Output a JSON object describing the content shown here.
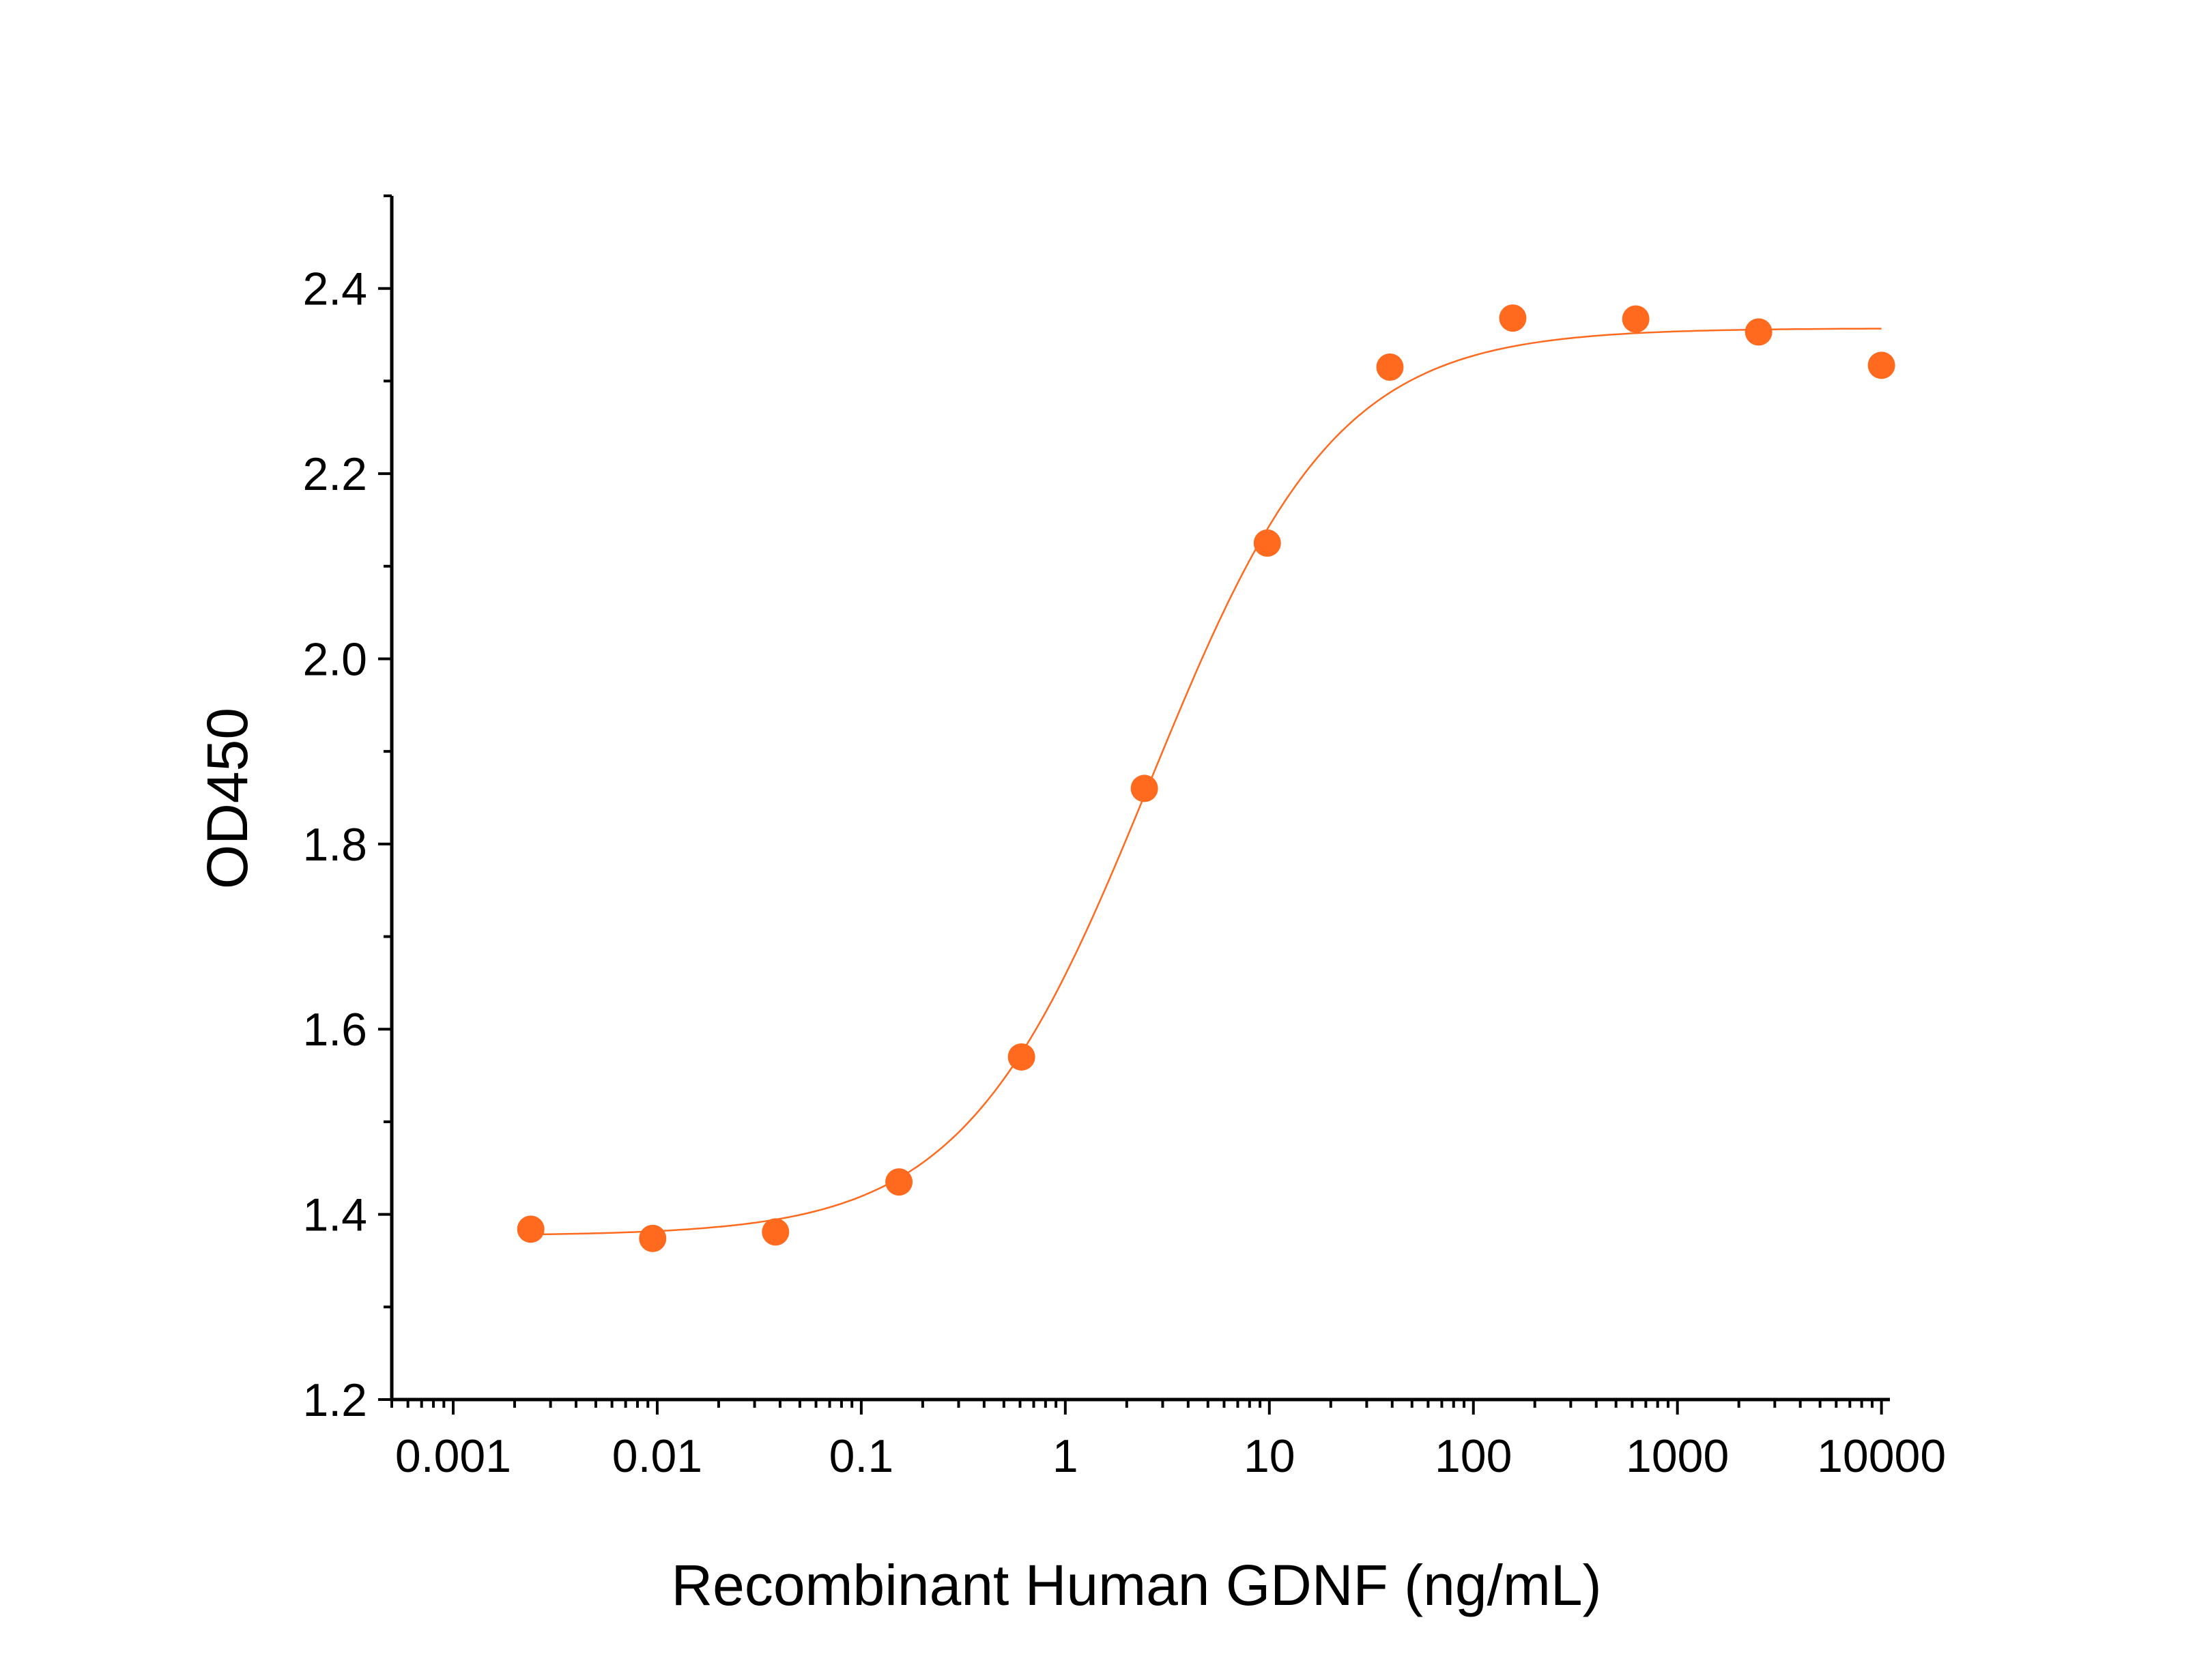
{
  "chart_data": {
    "type": "scatter",
    "title": "",
    "xlabel": "Recombinant Human GDNF (ng/mL)",
    "ylabel": "OD450",
    "x_scale": "log",
    "xlim": [
      0.0005,
      11000
    ],
    "ylim": [
      1.2,
      2.5
    ],
    "x_ticks": [
      0.001,
      0.01,
      0.1,
      1,
      10,
      100,
      1000,
      10000
    ],
    "x_tick_labels": [
      "0.001",
      "0.01",
      "0.1",
      "1",
      "10",
      "100",
      "1000",
      "10000"
    ],
    "y_ticks": [
      1.2,
      1.4,
      1.6,
      1.8,
      2.0,
      2.2,
      2.4
    ],
    "y_tick_labels": [
      "1.2",
      "1.4",
      "1.6",
      "1.8",
      "2.0",
      "2.2",
      "2.4"
    ],
    "grid": false,
    "color": "#FF6A1F",
    "series": [
      {
        "x": [
          0.0024,
          0.0095,
          0.038,
          0.153,
          0.61,
          2.44,
          9.77,
          39,
          156,
          625,
          2500,
          10000
        ],
        "y": [
          1.384,
          1.374,
          1.381,
          1.435,
          1.57,
          1.86,
          2.125,
          2.315,
          2.368,
          2.367,
          2.353,
          2.317
        ],
        "fit_curve": true
      }
    ]
  }
}
